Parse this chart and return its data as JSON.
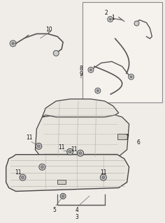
{
  "bg_color": "#f0ede8",
  "line_color": "#555555",
  "seat_fill": "#e8e4de",
  "seat_stroke": "#444444",
  "box_fill": "#f5f2ee",
  "figsize": [
    2.36,
    3.2
  ],
  "dpi": 100
}
